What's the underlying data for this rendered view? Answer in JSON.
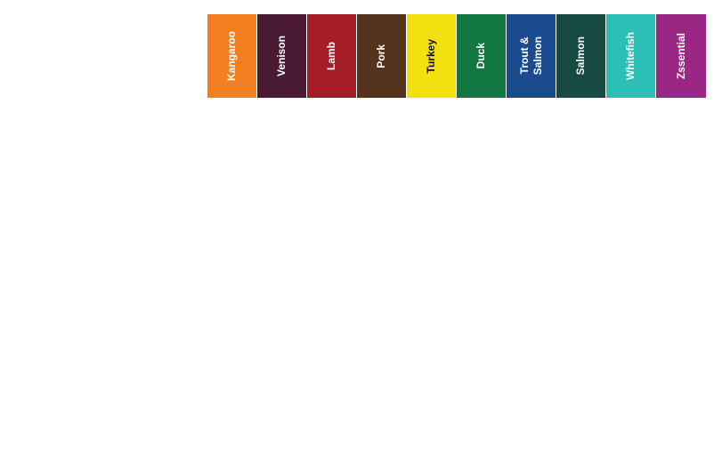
{
  "protein_tabs": [
    {
      "label": "Kangaroo",
      "color": "#f28020",
      "text_color": "#ffffff"
    },
    {
      "label": "Venison",
      "color": "#4a1a32",
      "text_color": "#ffffff"
    },
    {
      "label": "Lamb",
      "color": "#a51e27",
      "text_color": "#ffffff"
    },
    {
      "label": "Pork",
      "color": "#55341d",
      "text_color": "#ffffff"
    },
    {
      "label": "Turkey",
      "color": "#f2e011",
      "text_color": "#111111"
    },
    {
      "label": "Duck",
      "color": "#127740",
      "text_color": "#ffffff"
    },
    {
      "label": "Trout &\nSalmon",
      "color": "#1b4a8f",
      "text_color": "#ffffff"
    },
    {
      "label": "Salmon",
      "color": "#164a43",
      "text_color": "#ffffff"
    },
    {
      "label": "Whitefish",
      "color": "#2bbfb6",
      "text_color": "#ffffff"
    },
    {
      "label": "Zssential",
      "color": "#9b2785",
      "text_color": "#ffffff"
    }
  ]
}
